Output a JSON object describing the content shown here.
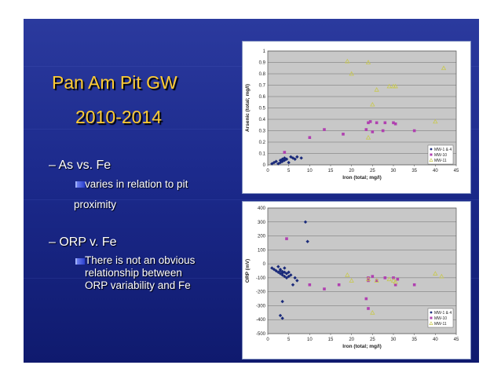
{
  "slide": {
    "title_line1": "Pan Am Pit GW",
    "title_line2": "2010-2014",
    "bullet1": "– As vs. Fe",
    "bullet1_sub": [
      "varies in relation to pit",
      "proximity"
    ],
    "bullet2": "– ORP v. Fe",
    "bullet2_sub": [
      "There is not an obvious",
      "relationship between",
      "ORP variability and Fe"
    ]
  },
  "colors": {
    "background": "#1c2a8c",
    "title": "#ffcc33",
    "series_mw1": "#1a2a7a",
    "series_mw10": "#b040b0",
    "series_mw11": "#c8c850",
    "plot_area": "#c8c8c8"
  },
  "chart_data": [
    {
      "type": "scatter",
      "title": "",
      "xlabel": "Iron (total; mg/l)",
      "ylabel": "Arsenic (total; mg/l)",
      "xlim": [
        0,
        45
      ],
      "ylim": [
        0,
        1
      ],
      "xticks": [
        "0",
        "5",
        "10",
        "15",
        "20",
        "25",
        "30",
        "35",
        "40",
        "45"
      ],
      "yticks": [
        "0",
        "0.1",
        "0.2",
        "0.3",
        "0.4",
        "0.5",
        "0.6",
        "0.7",
        "0.8",
        "0.9",
        "1"
      ],
      "legend": "right",
      "series": [
        {
          "name": "MW-1 & 4",
          "marker": "diamond",
          "x": [
            1,
            1.5,
            2,
            2.5,
            3,
            3,
            3.5,
            3.5,
            4,
            4,
            4.5,
            5,
            5.5,
            6,
            6.5,
            7,
            8
          ],
          "y": [
            0.01,
            0.02,
            0.03,
            0.01,
            0.04,
            0.02,
            0.05,
            0.03,
            0.04,
            0.06,
            0.05,
            0.02,
            0.07,
            0.06,
            0.05,
            0.07,
            0.06
          ]
        },
        {
          "name": "MW-10",
          "marker": "square",
          "x": [
            4,
            10,
            13.5,
            18,
            23.5,
            24,
            24.5,
            25,
            26,
            27.5,
            28,
            30,
            30.5,
            35
          ],
          "y": [
            0.11,
            0.24,
            0.31,
            0.27,
            0.31,
            0.37,
            0.38,
            0.29,
            0.37,
            0.3,
            0.37,
            0.37,
            0.36,
            0.3
          ]
        },
        {
          "name": "MW-11",
          "marker": "triangle",
          "x": [
            19,
            20,
            24,
            24,
            25,
            26,
            29,
            30,
            30.5,
            40,
            42
          ],
          "y": [
            0.91,
            0.8,
            0.9,
            0.24,
            0.53,
            0.66,
            0.69,
            0.69,
            0.69,
            0.38,
            0.85
          ]
        }
      ]
    },
    {
      "type": "scatter",
      "title": "",
      "xlabel": "Iron (total; mg/l)",
      "ylabel": "ORP (mV)",
      "xlim": [
        0,
        45
      ],
      "ylim": [
        -500,
        400
      ],
      "xticks": [
        "0",
        "5",
        "10",
        "15",
        "20",
        "25",
        "30",
        "35",
        "40",
        "45"
      ],
      "yticks": [
        "400",
        "300",
        "200",
        "100",
        "0",
        "-100",
        "-200",
        "-300",
        "-400",
        "-500"
      ],
      "legend": "right",
      "series": [
        {
          "name": "MW-1 & 4",
          "marker": "diamond",
          "x": [
            1,
            1.5,
            2,
            2.5,
            2.5,
            3,
            3,
            3,
            3.5,
            3.5,
            3.5,
            4,
            4,
            4,
            4.5,
            4.5,
            5,
            5,
            5.5,
            6,
            6.5,
            7,
            3,
            3.5,
            3.5,
            9,
            9.5
          ],
          "y": [
            -30,
            -40,
            -50,
            -20,
            -60,
            -50,
            -70,
            -40,
            -55,
            -65,
            -80,
            -90,
            -30,
            -60,
            -70,
            -100,
            -60,
            -90,
            -80,
            -150,
            -100,
            -120,
            -370,
            -390,
            -270,
            300,
            160
          ]
        },
        {
          "name": "MW-10",
          "marker": "square",
          "x": [
            4.5,
            10,
            13.5,
            17,
            23.5,
            24,
            24,
            24,
            25,
            26,
            28,
            30,
            30.5,
            31,
            35
          ],
          "y": [
            180,
            -150,
            -180,
            -150,
            -250,
            -120,
            -100,
            -320,
            -90,
            -120,
            -100,
            -100,
            -150,
            -110,
            -150
          ]
        },
        {
          "name": "MW-11",
          "marker": "triangle",
          "x": [
            19,
            20,
            24,
            25,
            26,
            29,
            30,
            30.5,
            40,
            41.5
          ],
          "y": [
            -80,
            -120,
            -110,
            -350,
            -120,
            -110,
            -120,
            -130,
            -70,
            -90
          ]
        }
      ]
    }
  ]
}
